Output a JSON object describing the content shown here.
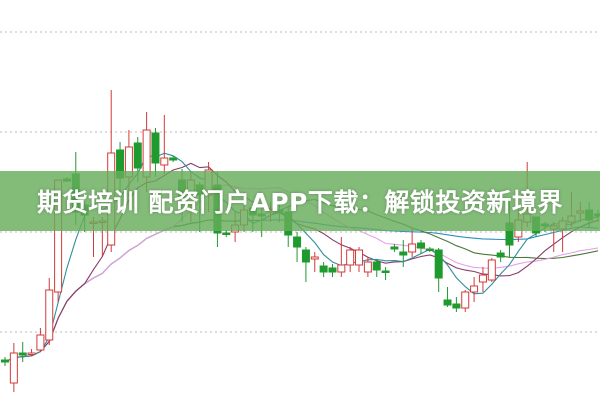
{
  "banner": {
    "text": "期货培训 配资门户APP下载：解锁投资新境界"
  },
  "chart_data": {
    "type": "candlestick",
    "ylim": [
      3.2,
      43.2
    ],
    "gridlines": [
      10,
      20,
      30,
      40
    ],
    "grid": true,
    "colors": {
      "up": "#d23a3a",
      "down": "#1e9a2e",
      "grid": "#bbbbbb"
    },
    "candles": [
      [
        7.2,
        7.0,
        7.5,
        6.6
      ],
      [
        4.9,
        7.9,
        8.9,
        4.0
      ],
      [
        7.9,
        7.7,
        9.0,
        7.0
      ],
      [
        7.8,
        7.9,
        8.3,
        7.6
      ],
      [
        8.2,
        9.7,
        10.4,
        8.0
      ],
      [
        9.2,
        14.2,
        15.4,
        8.7
      ],
      [
        14.0,
        25.2,
        25.2,
        13.0
      ],
      [
        25.3,
        25.1,
        25.5,
        25.0
      ],
      [
        25.8,
        22.0,
        28.0,
        20.7
      ],
      [
        22.7,
        21.7,
        23.0,
        20.0
      ],
      [
        21.0,
        21.0,
        21.5,
        17.5
      ],
      [
        21.0,
        21.1,
        21.5,
        17.5
      ],
      [
        18.7,
        27.9,
        34.2,
        18.0
      ],
      [
        28.2,
        25.4,
        29.0,
        23.0
      ],
      [
        25.5,
        28.5,
        30.2,
        23.5
      ],
      [
        28.9,
        26.4,
        29.5,
        25.0
      ],
      [
        25.5,
        30.2,
        32.0,
        24.0
      ],
      [
        29.9,
        26.9,
        30.4,
        25.5
      ],
      [
        26.7,
        27.4,
        31.7,
        25.8
      ],
      [
        27.4,
        27.2,
        27.6,
        27.0
      ],
      [
        25.2,
        23.5,
        26.3,
        21.0
      ],
      [
        22.7,
        25.2,
        26.0,
        21.0
      ],
      [
        24.7,
        23.7,
        25.0,
        20.0
      ],
      [
        23.7,
        26.2,
        27.0,
        22.0
      ],
      [
        24.7,
        19.9,
        26.0,
        18.5
      ],
      [
        19.9,
        19.8,
        20.2,
        19.5
      ],
      [
        20.0,
        20.7,
        22.0,
        19.0
      ],
      [
        20.7,
        22.2,
        24.0,
        20.0
      ],
      [
        22.4,
        21.7,
        22.8,
        20.0
      ],
      [
        21.8,
        21.6,
        22.5,
        19.5
      ],
      [
        22.0,
        22.2,
        23.0,
        21.0
      ],
      [
        22.2,
        22.0,
        23.0,
        21.0
      ],
      [
        22.0,
        19.7,
        22.5,
        18.5
      ],
      [
        19.5,
        18.5,
        20.0,
        17.0
      ],
      [
        18.2,
        17.0,
        18.5,
        15.0
      ],
      [
        17.3,
        17.5,
        18.0,
        16.0
      ],
      [
        16.6,
        16.0,
        17.0,
        15.5
      ],
      [
        16.4,
        16.0,
        16.8,
        15.5
      ],
      [
        16.0,
        16.7,
        19.5,
        15.5
      ],
      [
        16.7,
        18.2,
        18.5,
        16.0
      ],
      [
        16.7,
        18.2,
        18.5,
        16.0
      ],
      [
        16.0,
        17.0,
        17.5,
        15.5
      ],
      [
        17.0,
        16.2,
        17.2,
        15.5
      ],
      [
        16.1,
        16.0,
        16.5,
        15.2
      ],
      [
        18.5,
        18.3,
        18.8,
        18.0
      ],
      [
        18.0,
        17.7,
        19.2,
        16.5
      ],
      [
        18.0,
        18.8,
        20.4,
        17.5
      ],
      [
        18.9,
        18.4,
        19.2,
        17.8
      ],
      [
        18.3,
        18.2,
        18.5,
        18.0
      ],
      [
        18.2,
        15.4,
        18.4,
        14.0
      ],
      [
        13.2,
        12.7,
        14.5,
        12.5
      ],
      [
        12.8,
        12.4,
        13.5,
        12.0
      ],
      [
        12.4,
        14.0,
        14.2,
        12.0
      ],
      [
        14.0,
        14.6,
        15.5,
        13.0
      ],
      [
        15.0,
        15.7,
        16.5,
        14.0
      ],
      [
        15.2,
        17.2,
        17.4,
        15.0
      ],
      [
        17.9,
        17.5,
        18.2,
        17.0
      ],
      [
        20.9,
        18.7,
        23.0,
        17.5
      ],
      [
        19.5,
        21.2,
        22.5,
        19.0
      ],
      [
        21.0,
        21.8,
        27.0,
        20.5
      ],
      [
        21.5,
        19.9,
        21.5,
        19.5
      ],
      [
        20.8,
        20.6,
        21.0,
        20.0
      ],
      [
        20.3,
        20.6,
        21.0,
        18.0
      ],
      [
        20.3,
        21.1,
        21.5,
        18.0
      ],
      [
        21.0,
        21.6,
        24.0,
        20.5
      ],
      [
        21.9,
        22.1,
        23.0,
        21.0
      ],
      [
        22.2,
        21.2,
        23.0,
        20.5
      ],
      [
        21.8,
        21.6,
        22.2,
        21.0
      ]
    ],
    "moving_averages": [
      {
        "period": 5,
        "color": "#2f8f9a"
      },
      {
        "period": 10,
        "color": "#8a3a6a"
      },
      {
        "period": 20,
        "color": "#e6a0e6"
      },
      {
        "period": 30,
        "color": "#4a7a3a"
      },
      {
        "period": 60,
        "color": "#2f8fbf"
      }
    ]
  }
}
